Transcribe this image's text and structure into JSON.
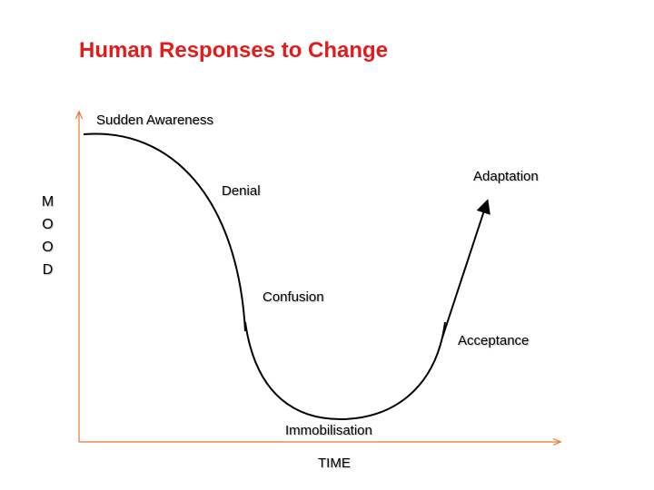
{
  "title": "Human Responses to Change",
  "axes": {
    "y": "MOOD",
    "x": "TIME"
  },
  "stages": [
    "Sudden Awareness",
    "Denial",
    "Confusion",
    "Immobilisation",
    "Acceptance",
    "Adaptation"
  ]
}
